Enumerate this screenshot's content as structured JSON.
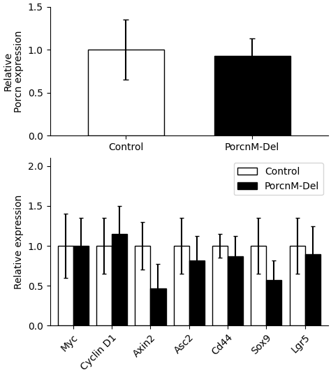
{
  "chart_data": [
    {
      "type": "bar",
      "categories": [
        "Control",
        "PorcnM-Del"
      ],
      "values": [
        1.0,
        0.93
      ],
      "errors": [
        0.35,
        0.2
      ],
      "colors": [
        "white",
        "black"
      ],
      "ylabel": "Relative\nPorcn expression",
      "ylim": [
        0,
        1.5
      ],
      "yticks": [
        0.0,
        0.5,
        1.0,
        1.5
      ]
    },
    {
      "type": "bar",
      "categories": [
        "Myc",
        "Cyclin D1",
        "Axin2",
        "Asc2",
        "Cd44",
        "Sox9",
        "Lgr5"
      ],
      "series": [
        {
          "name": "Control",
          "color": "white",
          "values": [
            1.0,
            1.0,
            1.0,
            1.0,
            1.0,
            1.0,
            1.0
          ],
          "errors": [
            0.4,
            0.35,
            0.3,
            0.35,
            0.15,
            0.35,
            0.35
          ]
        },
        {
          "name": "PorcnM-Del",
          "color": "black",
          "values": [
            1.0,
            1.15,
            0.47,
            0.82,
            0.87,
            0.57,
            0.9
          ],
          "errors": [
            0.35,
            0.35,
            0.3,
            0.3,
            0.25,
            0.25,
            0.35
          ]
        }
      ],
      "ylabel": "Relative expression",
      "ylim": [
        0,
        2.1
      ],
      "yticks": [
        0.0,
        0.5,
        1.0,
        1.5,
        2.0
      ],
      "legend": "upper right"
    }
  ]
}
